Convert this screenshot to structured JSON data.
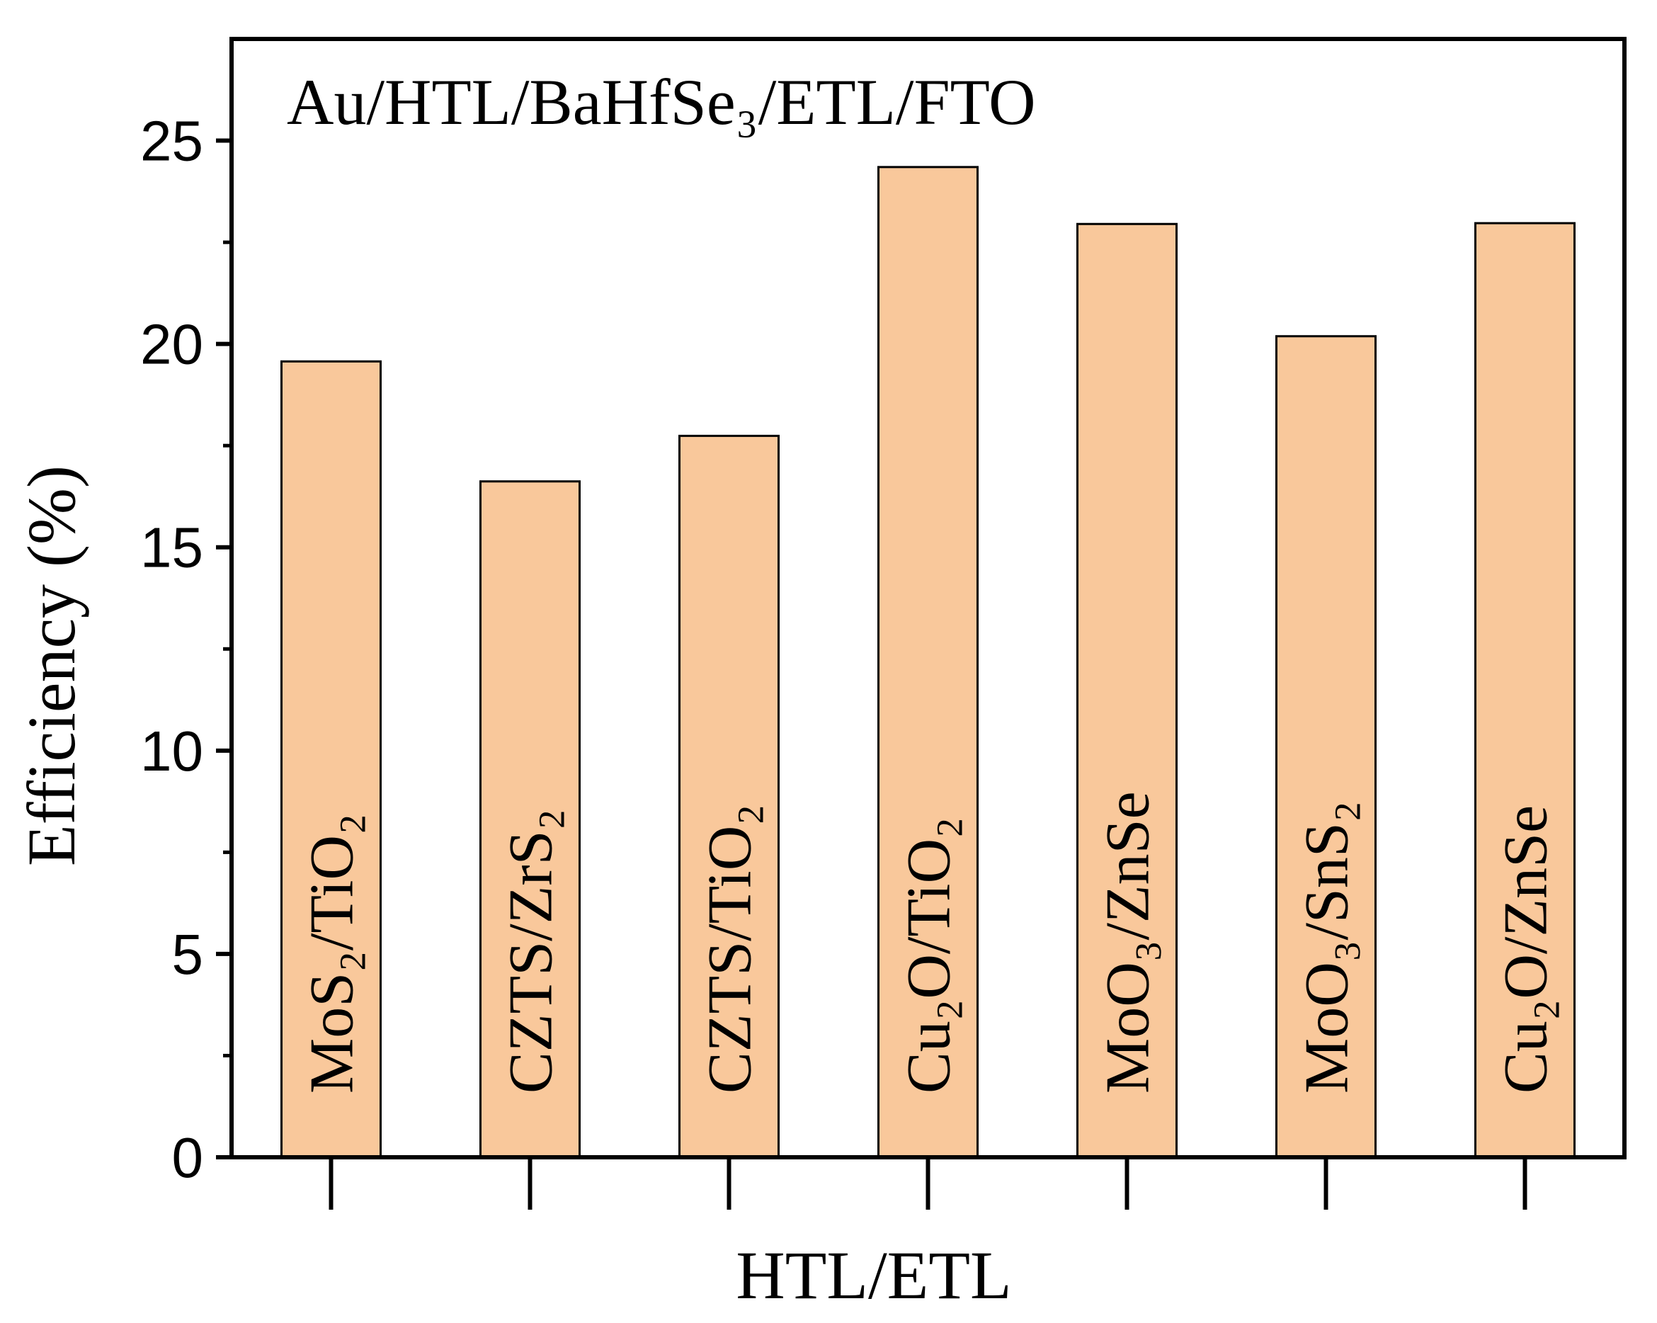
{
  "chart_data": {
    "type": "bar",
    "title": "Au/HTL/BaHfSe₃/ETL/FTO",
    "xlabel": "HTL/ETL",
    "ylabel": "Efficiency (%)",
    "ylim": [
      0,
      27.5
    ],
    "yticks": [
      0,
      5,
      10,
      15,
      20,
      25
    ],
    "grid": false,
    "categories": [
      "MoS₂/TiO₂",
      "CZTS/ZrS₂",
      "CZTS/TiO₂",
      "Cu₂O/TiO₂",
      "MoO₃/ZnSe",
      "MoO₃/SnS₂",
      "Cu₂O/ZnSe"
    ],
    "values": [
      19.57,
      16.62,
      17.74,
      24.35,
      22.95,
      20.19,
      22.97
    ],
    "bar_color": "#f9c89b",
    "bar_stroke": "#000000"
  }
}
